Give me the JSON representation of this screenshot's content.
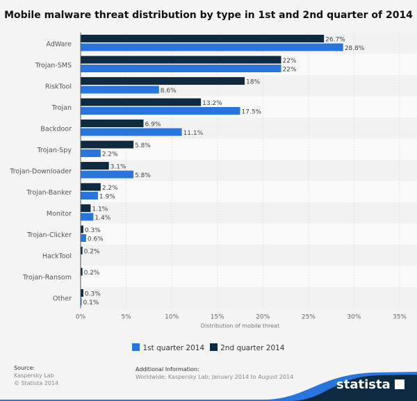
{
  "chart_data": {
    "type": "bar",
    "orientation": "horizontal",
    "title": "Mobile malware threat distribution by type in 1st and 2nd quarter of 2014",
    "xlabel": "Distribution of mobile threat",
    "ylabel": "",
    "xlim": [
      0,
      35
    ],
    "xticks": [
      "0%",
      "5%",
      "10%",
      "15%",
      "20%",
      "25%",
      "30%",
      "35%"
    ],
    "grid": true,
    "legend_position": "bottom",
    "categories": [
      "AdWare",
      "Trojan-SMS",
      "RiskTool",
      "Trojan",
      "Backdoor",
      "Trojan-Spy",
      "Trojan-Downloader",
      "Trojan-Banker",
      "Monitor",
      "Trojan-Clicker",
      "HackTool",
      "Trojan-Ransom",
      "Other"
    ],
    "series": [
      {
        "name": "2nd quarter 2014",
        "color": "#0d2a40",
        "values": [
          26.7,
          22,
          18,
          13.2,
          6.9,
          5.8,
          3.1,
          2.2,
          1.1,
          0.3,
          0.2,
          0.2,
          0.3
        ],
        "labels": [
          "26.7%",
          "22%",
          "18%",
          "13.2%",
          "6.9%",
          "5.8%",
          "3.1%",
          "2.2%",
          "1.1%",
          "0.3%",
          "0.2%",
          "0.2%",
          "0.3%"
        ]
      },
      {
        "name": "1st quarter 2014",
        "color": "#2876dd",
        "values": [
          28.8,
          22,
          8.6,
          17.5,
          11.1,
          2.2,
          5.8,
          1.9,
          1.4,
          0.6,
          null,
          null,
          0.1
        ],
        "labels": [
          "28.8%",
          "22%",
          "8.6%",
          "17.5%",
          "11.1%",
          "2.2%",
          "5.8%",
          "1.9%",
          "1.4%",
          "0.6%",
          null,
          null,
          "0.1%"
        ]
      }
    ]
  },
  "legend": {
    "q1": "1st quarter 2014",
    "q2": "2nd quarter 2014",
    "q1_color": "#2876dd",
    "q2_color": "#0d2a40"
  },
  "footer": {
    "source_label": "Source:",
    "source_lines": [
      "Kaspersky Lab",
      "© Statista 2014"
    ],
    "info_label": "Additional Information:",
    "info_text": "Worldwide; Kaspersky Lab; January 2014 to August 2014",
    "logo": "statista"
  }
}
